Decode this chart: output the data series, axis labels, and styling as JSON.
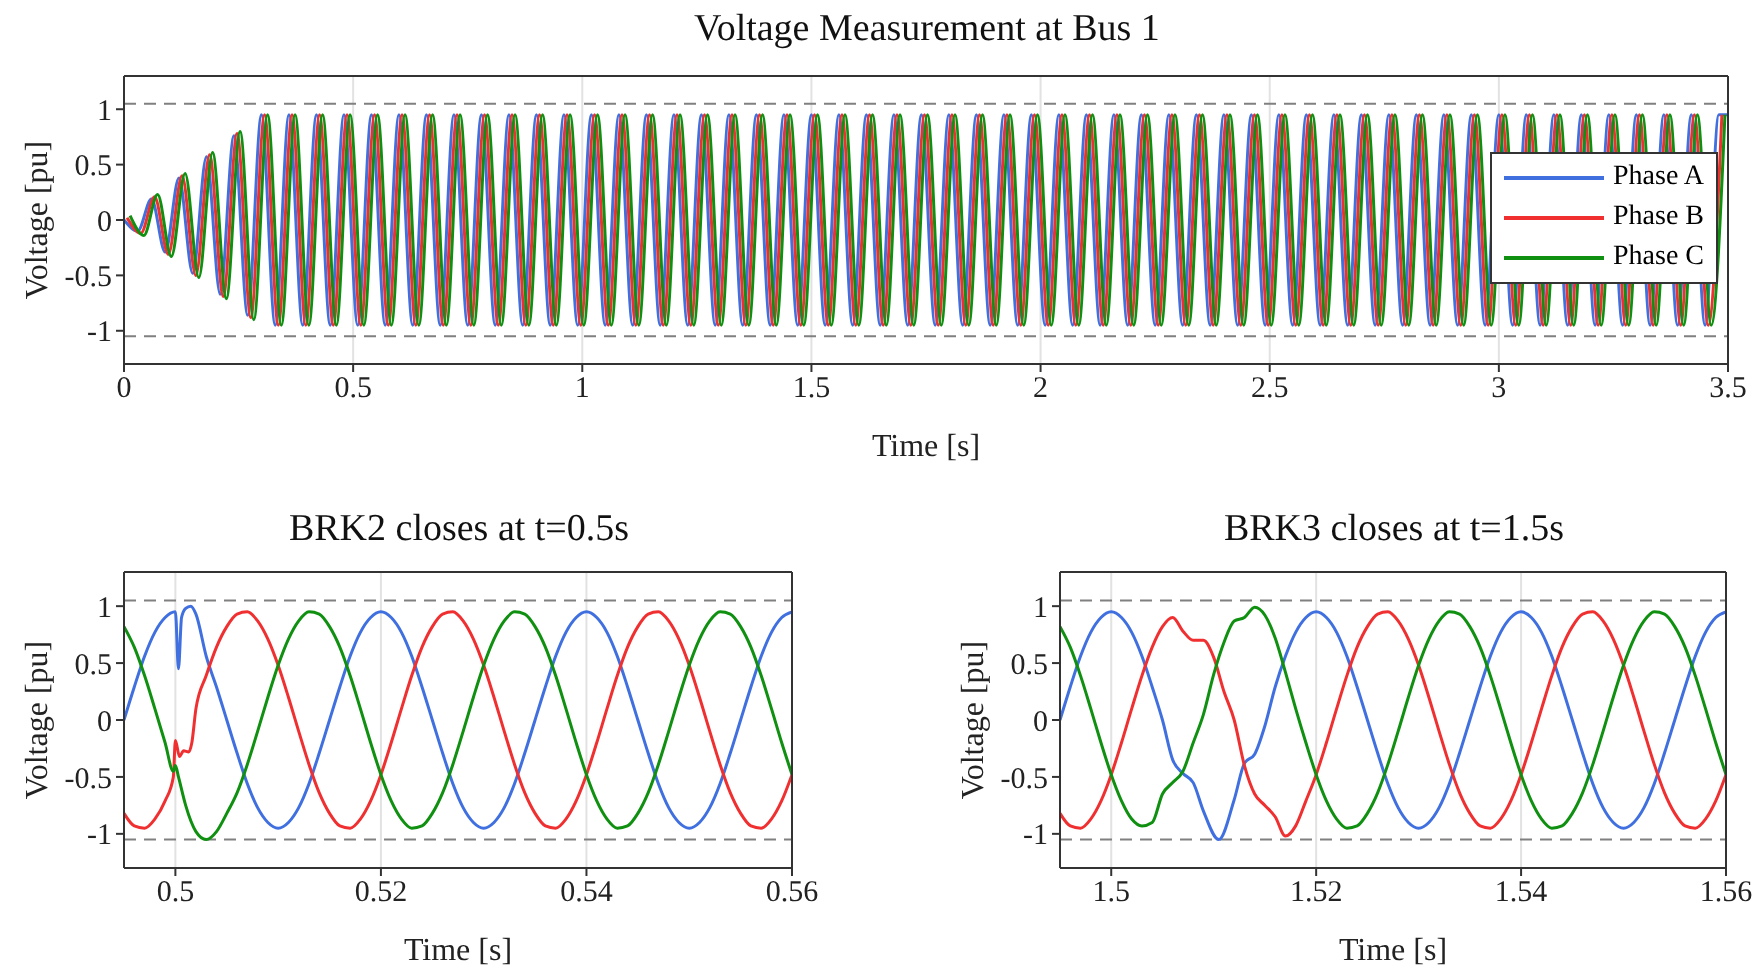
{
  "chart_data": [
    {
      "type": "line",
      "title": "Voltage Measurement at Bus 1",
      "xlabel": "Time [s]",
      "ylabel": "Voltage [pu]",
      "xlim": [
        0,
        3.5
      ],
      "xticks": [
        0,
        0.5,
        1,
        1.5,
        2,
        2.5,
        3,
        3.5
      ],
      "ylim": [
        -1.3,
        1.3
      ],
      "yticks": [
        -1,
        -0.5,
        0,
        0.5,
        1
      ],
      "grid": true,
      "legend": "right",
      "line_style": "solid",
      "marker": "none",
      "ref_lines": [
        {
          "axis": "y",
          "value": 1.05,
          "color": "#808080",
          "line_style": "dashed"
        },
        {
          "axis": "y",
          "value": -1.05,
          "color": "#808080",
          "line_style": "dashed"
        }
      ],
      "series": [
        {
          "name": "Phase A",
          "color": "#4070e0",
          "x": [
            0,
            0.03,
            0.06,
            0.09,
            0.12,
            0.15,
            0.18,
            0.21,
            0.24,
            0.27,
            0.3,
            0.33,
            0.36,
            0.39,
            0.42,
            0.45,
            0.48,
            0.51,
            0.54,
            0.57,
            0.6,
            0.63,
            0.66,
            0.69,
            0.72,
            0.75,
            0.78,
            0.81,
            0.84,
            0.87,
            0.9,
            0.93,
            0.96,
            0.99,
            1.02,
            1.05,
            1.08,
            1.11,
            1.14,
            1.17,
            1.2,
            1.23,
            1.26,
            1.29,
            1.32,
            1.35,
            1.38,
            1.41,
            1.44,
            1.47,
            1.5,
            1.53,
            1.56,
            1.59,
            1.62,
            1.65,
            1.68,
            1.71,
            1.74,
            1.77,
            1.8,
            1.83,
            1.86,
            1.89,
            1.92,
            1.95,
            1.98,
            2.01,
            2.04,
            2.07,
            2.1,
            2.13,
            2.16,
            2.19,
            2.22,
            2.25,
            2.28,
            2.31,
            2.34,
            2.37,
            2.4,
            2.43,
            2.46,
            2.49,
            2.52,
            2.55,
            2.58,
            2.61,
            2.64,
            2.67,
            2.7,
            2.73,
            2.76,
            2.79,
            2.82,
            2.85,
            2.88,
            2.91,
            2.94,
            2.97,
            3,
            3.03,
            3.06,
            3.09,
            3.12,
            3.15,
            3.18,
            3.21,
            3.24,
            3.27,
            3.3,
            3.33,
            3.36,
            3.39,
            3.42,
            3.45,
            3.48,
            3.5
          ],
          "values": [
            0,
            -0.1,
            0.19,
            -0.29,
            0.38,
            -0.48,
            0.57,
            -0.67,
            0.76,
            -0.86,
            0.95,
            -0.95,
            0.95,
            -0.95,
            0.95,
            -0.95,
            0.95,
            -0.95,
            0.95,
            -0.95,
            0.95,
            -0.95,
            0.95,
            -0.95,
            0.95,
            -0.95,
            0.95,
            -0.95,
            0.95,
            -0.95,
            0.95,
            -0.95,
            0.95,
            -0.95,
            0.95,
            -0.95,
            0.95,
            -0.95,
            0.95,
            -0.95,
            0.95,
            -0.95,
            0.95,
            -0.95,
            0.95,
            -0.95,
            0.95,
            -0.95,
            0.95,
            -0.95,
            0.95,
            -0.95,
            0.95,
            -0.95,
            0.95,
            -0.95,
            0.95,
            -0.95,
            0.95,
            -0.95,
            0.95,
            -0.95,
            0.95,
            -0.95,
            0.95,
            -0.95,
            0.95,
            -0.95,
            0.95,
            -0.95,
            0.95,
            -0.95,
            0.95,
            -0.95,
            0.95,
            -0.95,
            0.95,
            -0.95,
            0.95,
            -0.95,
            0.95,
            -0.95,
            0.95,
            -0.95,
            0.95,
            -0.95,
            0.95,
            -0.95,
            0.95,
            -0.95,
            0.95,
            -0.95,
            0.95,
            -0.95,
            0.95,
            -0.95,
            0.95,
            -0.95,
            0.95,
            -0.95,
            0.95,
            -0.95,
            0.95,
            -0.95,
            0.95,
            -0.95,
            0.95,
            -0.95,
            0.95,
            -0.95,
            0.95,
            -0.95,
            0.95,
            -0.95,
            0.95,
            -0.95,
            0.95,
            0.95
          ]
        },
        {
          "name": "Phase B",
          "color": "#f03030",
          "x": [
            0.0067,
            0.0367,
            0.0667,
            0.0967,
            0.1267,
            0.1567,
            0.1867,
            0.2167,
            0.2467,
            0.2767,
            0.3067,
            0.3367,
            0.3667,
            0.3967,
            0.4267,
            0.4567,
            0.4867,
            0.5167,
            0.5467,
            0.5767,
            0.6067,
            0.6367,
            0.6667,
            0.6967,
            0.7267,
            0.7567,
            0.7867,
            0.8167,
            0.8467,
            0.8767,
            0.9067,
            0.9367,
            0.9667,
            0.9967,
            1.0267,
            1.0567,
            1.0867,
            1.1167,
            1.1467,
            1.1767,
            1.2067,
            1.2367,
            1.2667,
            1.2967,
            1.3267,
            1.3567,
            1.3867,
            1.4167,
            1.4467,
            1.4767,
            1.5067,
            1.5367,
            1.5667,
            1.5967,
            1.6267,
            1.6567,
            1.6867,
            1.7167,
            1.7467,
            1.7767,
            1.8067,
            1.8367,
            1.8667,
            1.8967,
            1.9267,
            1.9567,
            1.9867,
            2.0167,
            2.0467,
            2.0767,
            2.1067,
            2.1367,
            2.1667,
            2.1967,
            2.2267,
            2.2567,
            2.2867,
            2.3167,
            2.3467,
            2.3767,
            2.4067,
            2.4367,
            2.4667,
            2.4967,
            2.5267,
            2.5567,
            2.5867,
            2.6167,
            2.6467,
            2.6767,
            2.7067,
            2.7367,
            2.7667,
            2.7967,
            2.8267,
            2.8567,
            2.8867,
            2.9167,
            2.9467,
            2.9767,
            3.0067,
            3.0367,
            3.0667,
            3.0967,
            3.1267,
            3.1567,
            3.1867,
            3.2167,
            3.2467,
            3.2767,
            3.3067,
            3.3367,
            3.3667,
            3.3967,
            3.4267,
            3.4567,
            3.4867
          ],
          "values": [
            0.02,
            -0.12,
            0.21,
            -0.31,
            0.4,
            -0.5,
            0.59,
            -0.69,
            0.78,
            -0.88,
            0.95,
            -0.95,
            0.95,
            -0.95,
            0.95,
            -0.95,
            0.95,
            -0.95,
            0.95,
            -0.95,
            0.95,
            -0.95,
            0.95,
            -0.95,
            0.95,
            -0.95,
            0.95,
            -0.95,
            0.95,
            -0.95,
            0.95,
            -0.95,
            0.95,
            -0.95,
            0.95,
            -0.95,
            0.95,
            -0.95,
            0.95,
            -0.95,
            0.95,
            -0.95,
            0.95,
            -0.95,
            0.95,
            -0.95,
            0.95,
            -0.95,
            0.95,
            -0.95,
            0.95,
            -0.95,
            0.95,
            -0.95,
            0.95,
            -0.95,
            0.95,
            -0.95,
            0.95,
            -0.95,
            0.95,
            -0.95,
            0.95,
            -0.95,
            0.95,
            -0.95,
            0.95,
            -0.95,
            0.95,
            -0.95,
            0.95,
            -0.95,
            0.95,
            -0.95,
            0.95,
            -0.95,
            0.95,
            -0.95,
            0.95,
            -0.95,
            0.95,
            -0.95,
            0.95,
            -0.95,
            0.95,
            -0.95,
            0.95,
            -0.95,
            0.95,
            -0.95,
            0.95,
            -0.95,
            0.95,
            -0.95,
            0.95,
            -0.95,
            0.95,
            -0.95,
            0.95,
            -0.95,
            0.95,
            -0.95,
            0.95,
            -0.95,
            0.95,
            -0.95,
            0.95,
            -0.95,
            0.95,
            -0.95,
            0.95,
            -0.95,
            0.95,
            -0.95,
            0.95,
            -0.95,
            0.95
          ]
        },
        {
          "name": "Phase C",
          "color": "#109010",
          "x": [
            0.0133,
            0.0433,
            0.0733,
            0.1033,
            0.1333,
            0.1633,
            0.1933,
            0.2233,
            0.2533,
            0.2833,
            0.3133,
            0.3433,
            0.3733,
            0.4033,
            0.4333,
            0.4633,
            0.4933,
            0.5233,
            0.5533,
            0.5833,
            0.6133,
            0.6433,
            0.6733,
            0.7033,
            0.7333,
            0.7633,
            0.7933,
            0.8233,
            0.8533,
            0.8833,
            0.9133,
            0.9433,
            0.9733,
            1.0033,
            1.0333,
            1.0633,
            1.0933,
            1.1233,
            1.1533,
            1.1833,
            1.2133,
            1.2433,
            1.2733,
            1.3033,
            1.3333,
            1.3633,
            1.3933,
            1.4233,
            1.4533,
            1.4833,
            1.5133,
            1.5433,
            1.5733,
            1.6033,
            1.6333,
            1.6633,
            1.6933,
            1.7233,
            1.7533,
            1.7833,
            1.8133,
            1.8433,
            1.8733,
            1.9033,
            1.9333,
            1.9633,
            1.9933,
            2.0233,
            2.0533,
            2.0833,
            2.1133,
            2.1433,
            2.1733,
            2.2033,
            2.2333,
            2.2633,
            2.2933,
            2.3233,
            2.3533,
            2.3833,
            2.4133,
            2.4433,
            2.4733,
            2.5033,
            2.5333,
            2.5633,
            2.5933,
            2.6233,
            2.6533,
            2.6833,
            2.7133,
            2.7433,
            2.7733,
            2.8033,
            2.8333,
            2.8633,
            2.8933,
            2.9233,
            2.9533,
            2.9833,
            3.0133,
            3.0433,
            3.0733,
            3.1033,
            3.1333,
            3.1633,
            3.1933,
            3.2233,
            3.2533,
            3.2833,
            3.3133,
            3.3433,
            3.3733,
            3.4033,
            3.4333,
            3.4633,
            3.4933
          ],
          "values": [
            0.04,
            -0.14,
            0.23,
            -0.33,
            0.42,
            -0.52,
            0.61,
            -0.71,
            0.8,
            -0.9,
            0.95,
            -0.95,
            0.95,
            -0.95,
            0.95,
            -0.95,
            0.95,
            -0.95,
            0.95,
            -0.95,
            0.95,
            -0.95,
            0.95,
            -0.95,
            0.95,
            -0.95,
            0.95,
            -0.95,
            0.95,
            -0.95,
            0.95,
            -0.95,
            0.95,
            -0.95,
            0.95,
            -0.95,
            0.95,
            -0.95,
            0.95,
            -0.95,
            0.95,
            -0.95,
            0.95,
            -0.95,
            0.95,
            -0.95,
            0.95,
            -0.95,
            0.95,
            -0.95,
            0.95,
            -0.95,
            0.95,
            -0.95,
            0.95,
            -0.95,
            0.95,
            -0.95,
            0.95,
            -0.95,
            0.95,
            -0.95,
            0.95,
            -0.95,
            0.95,
            -0.95,
            0.95,
            -0.95,
            0.95,
            -0.95,
            0.95,
            -0.95,
            0.95,
            -0.95,
            0.95,
            -0.95,
            0.95,
            -0.95,
            0.95,
            -0.95,
            0.95,
            -0.95,
            0.95,
            -0.95,
            0.95,
            -0.95,
            0.95,
            -0.95,
            0.95,
            -0.95,
            0.95,
            -0.95,
            0.95,
            -0.95,
            0.95,
            -0.95,
            0.95,
            -0.95,
            0.95,
            -0.95,
            0.95,
            -0.95,
            0.95,
            -0.95,
            0.95,
            -0.95,
            0.95,
            -0.95,
            0.95,
            -0.95,
            0.95,
            -0.95,
            0.95,
            -0.95,
            0.95,
            -0.95,
            0.95
          ]
        }
      ]
    },
    {
      "type": "line",
      "title": "BRK2 closes at t=0.5s",
      "xlabel": "Time [s]",
      "ylabel": "Voltage [pu]",
      "xlim": [
        0.495,
        0.56
      ],
      "xticks": [
        0.5,
        0.52,
        0.54,
        0.56
      ],
      "ylim": [
        -1.3,
        1.3
      ],
      "yticks": [
        -1,
        -0.5,
        0,
        0.5,
        1
      ],
      "grid": true,
      "line_style": "solid",
      "marker": "none",
      "ref_lines": [
        {
          "axis": "y",
          "value": 1.05,
          "color": "#808080",
          "line_style": "dashed"
        },
        {
          "axis": "y",
          "value": -1.05,
          "color": "#808080",
          "line_style": "dashed"
        }
      ],
      "series": [
        {
          "color": "#4070e0",
          "x": [
            0.495,
            0.496,
            0.497,
            0.498,
            0.499,
            0.5,
            0.5003,
            0.5006,
            0.501,
            0.5015,
            0.502,
            0.503,
            0.504,
            0.505,
            0.506,
            0.507,
            0.508,
            0.509,
            0.51,
            0.511,
            0.512,
            0.513,
            0.514,
            0.515,
            0.516,
            0.517,
            0.518,
            0.519,
            0.52,
            0.521,
            0.522,
            0.523,
            0.524,
            0.525,
            0.526,
            0.527,
            0.528,
            0.529,
            0.53,
            0.531,
            0.532,
            0.533,
            0.534,
            0.535,
            0.536,
            0.537,
            0.538,
            0.539,
            0.54,
            0.541,
            0.542,
            0.543,
            0.544,
            0.545,
            0.546,
            0.547,
            0.548,
            0.549,
            0.55,
            0.551,
            0.552,
            0.553,
            0.554,
            0.555,
            0.556,
            0.557,
            0.558,
            0.559,
            0.56
          ],
          "values": [
            0,
            0.29,
            0.56,
            0.77,
            0.9,
            0.95,
            0.45,
            0.9,
            0.98,
            1,
            0.93,
            0.56,
            0.29,
            0,
            -0.29,
            -0.56,
            -0.77,
            -0.9,
            -0.95,
            -0.9,
            -0.77,
            -0.56,
            -0.29,
            0,
            0.29,
            0.56,
            0.77,
            0.9,
            0.95,
            0.9,
            0.77,
            0.56,
            0.29,
            0,
            -0.29,
            -0.56,
            -0.77,
            -0.9,
            -0.95,
            -0.9,
            -0.77,
            -0.56,
            -0.29,
            0,
            0.29,
            0.56,
            0.77,
            0.9,
            0.95,
            0.9,
            0.77,
            0.56,
            0.29,
            0,
            -0.29,
            -0.56,
            -0.77,
            -0.9,
            -0.95,
            -0.9,
            -0.77,
            -0.56,
            -0.29,
            0,
            0.29,
            0.56,
            0.77,
            0.9,
            0.95
          ]
        },
        {
          "color": "#f03030",
          "x": [
            0.495,
            0.496,
            0.497,
            0.498,
            0.499,
            0.4998,
            0.5,
            0.5004,
            0.5008,
            0.5013,
            0.5016,
            0.502,
            0.503,
            0.504,
            0.505,
            0.506,
            0.507,
            0.508,
            0.509,
            0.51,
            0.511,
            0.512,
            0.513,
            0.514,
            0.515,
            0.516,
            0.517,
            0.518,
            0.519,
            0.52,
            0.521,
            0.522,
            0.523,
            0.524,
            0.525,
            0.526,
            0.527,
            0.528,
            0.529,
            0.53,
            0.531,
            0.532,
            0.533,
            0.534,
            0.535,
            0.536,
            0.537,
            0.538,
            0.539,
            0.54,
            0.541,
            0.542,
            0.543,
            0.544,
            0.545,
            0.546,
            0.547,
            0.548,
            0.549,
            0.55,
            0.551,
            0.552,
            0.553,
            0.554,
            0.555,
            0.556,
            0.557,
            0.558,
            0.559,
            0.56
          ],
          "values": [
            -0.82,
            -0.93,
            -0.95,
            -0.87,
            -0.71,
            -0.5,
            -0.18,
            -0.32,
            -0.27,
            -0.28,
            -0.2,
            0.1,
            0.39,
            0.64,
            0.82,
            0.93,
            0.95,
            0.87,
            0.71,
            0.48,
            0.2,
            -0.1,
            -0.39,
            -0.64,
            -0.82,
            -0.93,
            -0.95,
            -0.87,
            -0.71,
            -0.48,
            -0.2,
            0.1,
            0.39,
            0.64,
            0.82,
            0.93,
            0.95,
            0.87,
            0.71,
            0.48,
            0.2,
            -0.1,
            -0.39,
            -0.64,
            -0.82,
            -0.93,
            -0.95,
            -0.87,
            -0.71,
            -0.48,
            -0.2,
            0.1,
            0.39,
            0.64,
            0.82,
            0.93,
            0.95,
            0.87,
            0.71,
            0.48,
            0.2,
            -0.1,
            -0.39,
            -0.64,
            -0.82,
            -0.93,
            -0.95,
            -0.87,
            -0.71,
            -0.48
          ]
        },
        {
          "color": "#109010",
          "x": [
            0.495,
            0.496,
            0.497,
            0.498,
            0.499,
            0.4998,
            0.5,
            0.5003,
            0.501,
            0.502,
            0.503,
            0.504,
            0.505,
            0.506,
            0.507,
            0.508,
            0.509,
            0.51,
            0.511,
            0.512,
            0.513,
            0.514,
            0.515,
            0.516,
            0.517,
            0.518,
            0.519,
            0.52,
            0.521,
            0.522,
            0.523,
            0.524,
            0.525,
            0.526,
            0.527,
            0.528,
            0.529,
            0.53,
            0.531,
            0.532,
            0.533,
            0.534,
            0.535,
            0.536,
            0.537,
            0.538,
            0.539,
            0.54,
            0.541,
            0.542,
            0.543,
            0.544,
            0.545,
            0.546,
            0.547,
            0.548,
            0.549,
            0.55,
            0.551,
            0.552,
            0.553,
            0.554,
            0.555,
            0.556,
            0.557,
            0.558,
            0.559,
            0.56
          ],
          "values": [
            0.82,
            0.64,
            0.39,
            0.1,
            -0.2,
            -0.45,
            -0.4,
            -0.5,
            -0.75,
            -0.98,
            -1.05,
            -0.98,
            -0.82,
            -0.64,
            -0.39,
            -0.1,
            0.2,
            0.48,
            0.71,
            0.87,
            0.95,
            0.93,
            0.82,
            0.64,
            0.39,
            0.1,
            -0.2,
            -0.48,
            -0.71,
            -0.87,
            -0.95,
            -0.93,
            -0.82,
            -0.64,
            -0.39,
            -0.1,
            0.2,
            0.48,
            0.71,
            0.87,
            0.95,
            0.93,
            0.82,
            0.64,
            0.39,
            0.1,
            -0.2,
            -0.48,
            -0.71,
            -0.87,
            -0.95,
            -0.93,
            -0.82,
            -0.64,
            -0.39,
            -0.1,
            0.2,
            0.48,
            0.71,
            0.87,
            0.95,
            0.93,
            0.82,
            0.64,
            0.39,
            0.1,
            -0.2,
            -0.48
          ]
        }
      ]
    },
    {
      "type": "line",
      "title": "BRK3 closes at t=1.5s",
      "xlabel": "Time [s]",
      "ylabel": "Voltage [pu]",
      "xlim": [
        1.495,
        1.56
      ],
      "xticks": [
        1.5,
        1.52,
        1.54,
        1.56
      ],
      "ylim": [
        -1.3,
        1.3
      ],
      "yticks": [
        -1,
        -0.5,
        0,
        0.5,
        1
      ],
      "grid": true,
      "line_style": "solid",
      "marker": "none",
      "ref_lines": [
        {
          "axis": "y",
          "value": 1.05,
          "color": "#808080",
          "line_style": "dashed"
        },
        {
          "axis": "y",
          "value": -1.05,
          "color": "#808080",
          "line_style": "dashed"
        }
      ],
      "series": [
        {
          "color": "#4070e0",
          "x": [
            1.495,
            1.496,
            1.497,
            1.498,
            1.499,
            1.5,
            1.501,
            1.502,
            1.503,
            1.504,
            1.505,
            1.506,
            1.507,
            1.508,
            1.509,
            1.5105,
            1.512,
            1.513,
            1.514,
            1.515,
            1.516,
            1.517,
            1.518,
            1.519,
            1.52,
            1.521,
            1.522,
            1.523,
            1.524,
            1.525,
            1.526,
            1.527,
            1.528,
            1.529,
            1.53,
            1.531,
            1.532,
            1.533,
            1.534,
            1.535,
            1.536,
            1.537,
            1.538,
            1.539,
            1.54,
            1.541,
            1.542,
            1.543,
            1.544,
            1.545,
            1.546,
            1.547,
            1.548,
            1.549,
            1.55,
            1.551,
            1.552,
            1.553,
            1.554,
            1.555,
            1.556,
            1.557,
            1.558,
            1.559,
            1.56
          ],
          "values": [
            0,
            0.29,
            0.56,
            0.77,
            0.9,
            0.95,
            0.9,
            0.77,
            0.56,
            0.29,
            0,
            -0.35,
            -0.47,
            -0.55,
            -0.8,
            -1.05,
            -0.7,
            -0.38,
            -0.3,
            -0.05,
            0.29,
            0.56,
            0.77,
            0.9,
            0.95,
            0.9,
            0.77,
            0.56,
            0.29,
            0,
            -0.29,
            -0.56,
            -0.77,
            -0.9,
            -0.95,
            -0.9,
            -0.77,
            -0.56,
            -0.29,
            0,
            0.29,
            0.56,
            0.77,
            0.9,
            0.95,
            0.9,
            0.77,
            0.56,
            0.29,
            0,
            -0.29,
            -0.56,
            -0.77,
            -0.9,
            -0.95,
            -0.9,
            -0.77,
            -0.56,
            -0.29,
            0,
            0.29,
            0.56,
            0.77,
            0.9,
            0.95
          ]
        },
        {
          "color": "#f03030",
          "x": [
            1.495,
            1.496,
            1.497,
            1.498,
            1.499,
            1.5,
            1.501,
            1.502,
            1.503,
            1.504,
            1.505,
            1.506,
            1.507,
            1.508,
            1.509,
            1.51,
            1.511,
            1.512,
            1.513,
            1.514,
            1.515,
            1.516,
            1.517,
            1.518,
            1.519,
            1.52,
            1.521,
            1.522,
            1.523,
            1.524,
            1.525,
            1.526,
            1.527,
            1.528,
            1.529,
            1.53,
            1.531,
            1.532,
            1.533,
            1.534,
            1.535,
            1.536,
            1.537,
            1.538,
            1.539,
            1.54,
            1.541,
            1.542,
            1.543,
            1.544,
            1.545,
            1.546,
            1.547,
            1.548,
            1.549,
            1.55,
            1.551,
            1.552,
            1.553,
            1.554,
            1.555,
            1.556,
            1.557,
            1.558,
            1.559,
            1.56
          ],
          "values": [
            -0.82,
            -0.93,
            -0.95,
            -0.87,
            -0.71,
            -0.48,
            -0.2,
            0.1,
            0.39,
            0.64,
            0.82,
            0.9,
            0.78,
            0.7,
            0.7,
            0.55,
            0.25,
            0,
            -0.4,
            -0.65,
            -0.75,
            -0.85,
            -1.02,
            -0.93,
            -0.71,
            -0.48,
            -0.2,
            0.1,
            0.39,
            0.64,
            0.82,
            0.93,
            0.95,
            0.87,
            0.71,
            0.48,
            0.2,
            -0.1,
            -0.39,
            -0.64,
            -0.82,
            -0.93,
            -0.95,
            -0.87,
            -0.71,
            -0.48,
            -0.2,
            0.1,
            0.39,
            0.64,
            0.82,
            0.93,
            0.95,
            0.87,
            0.71,
            0.48,
            0.2,
            -0.1,
            -0.39,
            -0.64,
            -0.82,
            -0.93,
            -0.95,
            -0.87,
            -0.71,
            -0.48
          ]
        },
        {
          "color": "#109010",
          "x": [
            1.495,
            1.496,
            1.497,
            1.498,
            1.499,
            1.5,
            1.501,
            1.502,
            1.503,
            1.504,
            1.505,
            1.506,
            1.507,
            1.508,
            1.509,
            1.51,
            1.511,
            1.512,
            1.513,
            1.514,
            1.515,
            1.516,
            1.517,
            1.518,
            1.519,
            1.52,
            1.521,
            1.522,
            1.523,
            1.524,
            1.525,
            1.526,
            1.527,
            1.528,
            1.529,
            1.53,
            1.531,
            1.532,
            1.533,
            1.534,
            1.535,
            1.536,
            1.537,
            1.538,
            1.539,
            1.54,
            1.541,
            1.542,
            1.543,
            1.544,
            1.545,
            1.546,
            1.547,
            1.548,
            1.549,
            1.55,
            1.551,
            1.552,
            1.553,
            1.554,
            1.555,
            1.556,
            1.557,
            1.558,
            1.559,
            1.56
          ],
          "values": [
            0.82,
            0.64,
            0.39,
            0.1,
            -0.2,
            -0.48,
            -0.71,
            -0.87,
            -0.93,
            -0.9,
            -0.65,
            -0.55,
            -0.45,
            -0.2,
            0.05,
            0.4,
            0.68,
            0.87,
            0.9,
            0.99,
            0.92,
            0.72,
            0.42,
            0.1,
            -0.2,
            -0.48,
            -0.71,
            -0.87,
            -0.95,
            -0.93,
            -0.82,
            -0.64,
            -0.39,
            -0.1,
            0.2,
            0.48,
            0.71,
            0.87,
            0.95,
            0.93,
            0.82,
            0.64,
            0.39,
            0.1,
            -0.2,
            -0.48,
            -0.71,
            -0.87,
            -0.95,
            -0.93,
            -0.82,
            -0.64,
            -0.39,
            -0.1,
            0.2,
            0.48,
            0.71,
            0.87,
            0.95,
            0.93,
            0.82,
            0.64,
            0.39,
            0.1,
            -0.2,
            -0.48
          ]
        }
      ]
    }
  ]
}
